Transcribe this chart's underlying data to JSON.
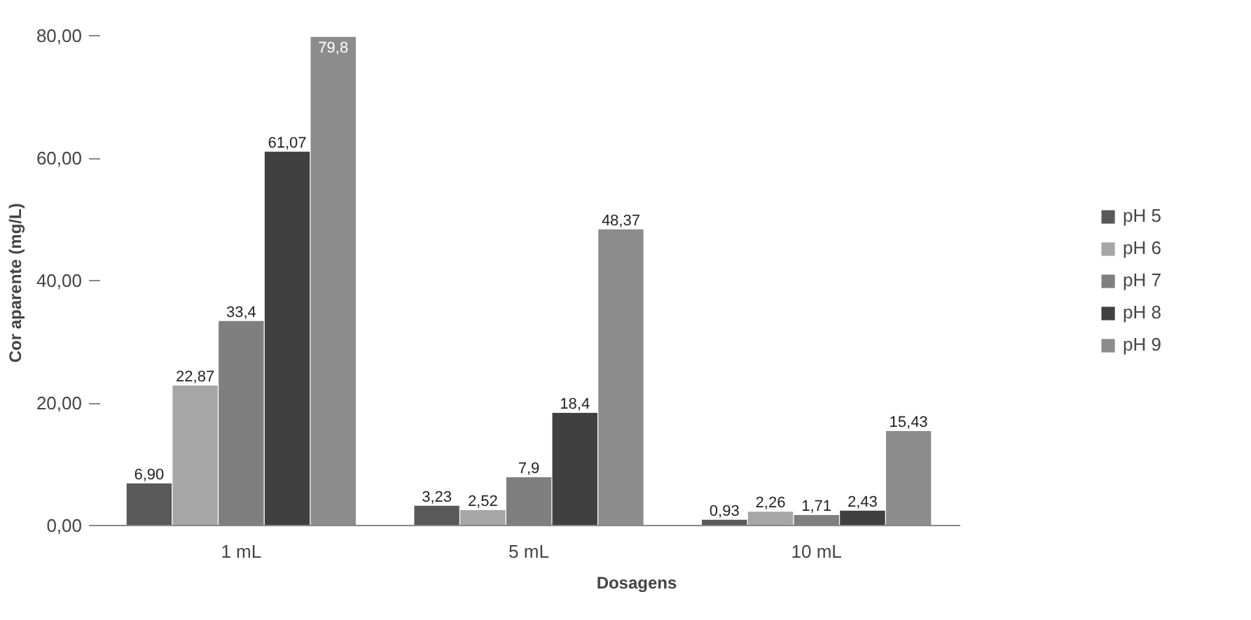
{
  "chart_data": {
    "type": "bar",
    "xlabel": "Dosagens",
    "ylabel": "Cor aparente  (mg/L)",
    "categories": [
      "1 mL",
      "5 mL",
      "10 mL"
    ],
    "series": [
      {
        "name": "pH 5",
        "color": "#595959",
        "values": [
          6.9,
          3.23,
          0.93
        ],
        "value_labels": [
          "6,90",
          "3,23",
          "0,93"
        ]
      },
      {
        "name": "pH 6",
        "color": "#a6a6a6",
        "values": [
          22.87,
          2.52,
          2.26
        ],
        "value_labels": [
          "22,87",
          "2,52",
          "2,26"
        ]
      },
      {
        "name": "pH 7",
        "color": "#7f7f7f",
        "values": [
          33.4,
          7.9,
          1.71
        ],
        "value_labels": [
          "33,4",
          "7,9",
          "1,71"
        ]
      },
      {
        "name": "pH 8",
        "color": "#404040",
        "values": [
          61.07,
          18.4,
          2.43
        ],
        "value_labels": [
          "61,07",
          "18,4",
          "2,43"
        ]
      },
      {
        "name": "pH 9",
        "color": "#8c8c8c",
        "values": [
          79.8,
          48.37,
          15.43
        ],
        "value_labels": [
          "79,8",
          "48,37",
          "15,43"
        ]
      }
    ],
    "ylim": [
      0,
      80
    ],
    "yticks": [
      {
        "value": 0,
        "label": "0,00"
      },
      {
        "value": 20,
        "label": "20,00"
      },
      {
        "value": 40,
        "label": "40,00"
      },
      {
        "value": 60,
        "label": "60,00"
      },
      {
        "value": 80,
        "label": "80,00"
      }
    ],
    "grid": false,
    "legend": "right"
  }
}
